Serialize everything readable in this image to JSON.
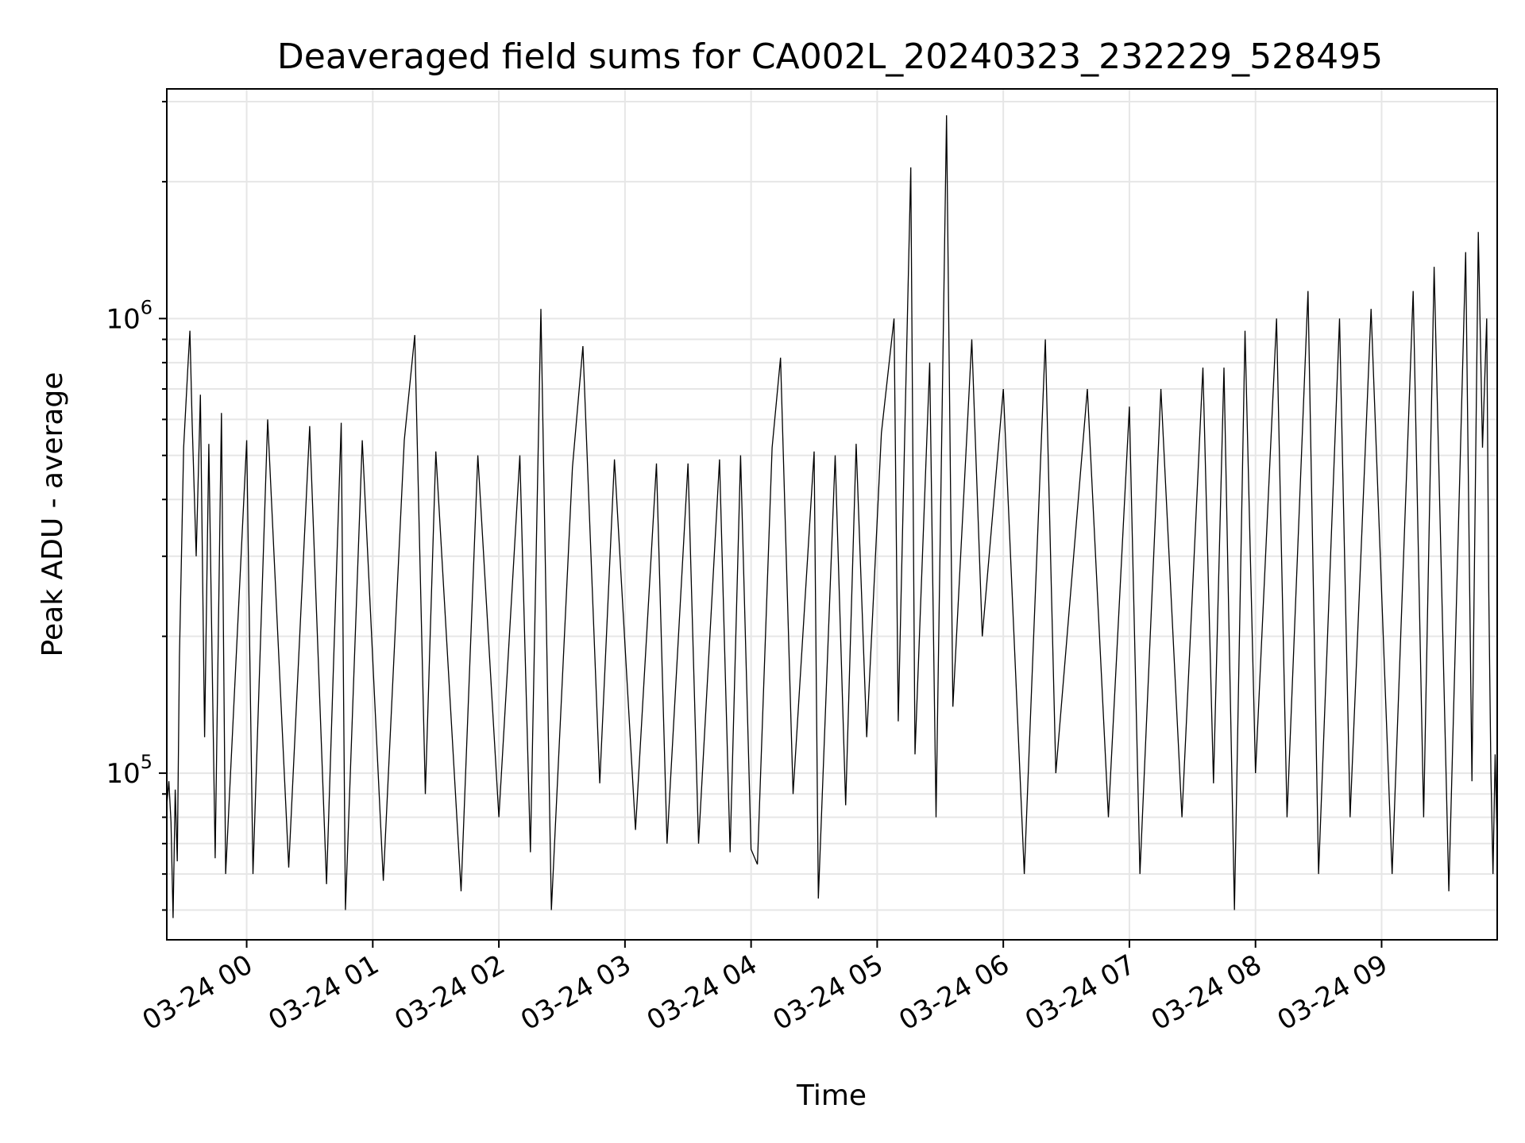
{
  "chart_data": {
    "type": "line",
    "title": "Deaveraged field sums for CA002L_20240323_232229_528495",
    "xlabel": "Time",
    "ylabel": "Peak ADU - average",
    "x_ticks": [
      "03-24 00",
      "03-24 01",
      "03-24 02",
      "03-24 03",
      "03-24 04",
      "03-24 05",
      "03-24 06",
      "03-24 07",
      "03-24 08",
      "03-24 09"
    ],
    "y_ticks": [
      {
        "base": "10",
        "exp": "5",
        "value": 100000
      },
      {
        "base": "10",
        "exp": "6",
        "value": 1000000
      }
    ],
    "xlim": [
      "03-23 23:22",
      "03-24 09:55"
    ],
    "ylim": [
      43000,
      3200000
    ],
    "yscale": "log",
    "grid": true,
    "line_color": "#000000",
    "grid_color": "#e6e6e6",
    "series": [
      {
        "points": [
          [
            "03-23 23:22",
            85000
          ],
          [
            "03-23 23:23",
            96000
          ],
          [
            "03-23 23:24",
            78000
          ],
          [
            "03-23 23:25",
            48000
          ],
          [
            "03-23 23:26",
            92000
          ],
          [
            "03-23 23:27",
            64000
          ],
          [
            "03-23 23:28",
            180000
          ],
          [
            "03-23 23:30",
            520000
          ],
          [
            "03-23 23:32",
            780000
          ],
          [
            "03-23 23:33",
            940000
          ],
          [
            "03-23 23:34",
            600000
          ],
          [
            "03-23 23:36",
            300000
          ],
          [
            "03-23 23:38",
            680000
          ],
          [
            "03-23 23:40",
            120000
          ],
          [
            "03-23 23:42",
            530000
          ],
          [
            "03-23 23:45",
            65000
          ],
          [
            "03-23 23:48",
            620000
          ],
          [
            "03-23 23:50",
            60000
          ],
          [
            "03-24 00:00",
            540000
          ],
          [
            "03-24 00:03",
            60000
          ],
          [
            "03-24 00:10",
            600000
          ],
          [
            "03-24 00:20",
            62000
          ],
          [
            "03-24 00:30",
            580000
          ],
          [
            "03-24 00:38",
            57000
          ],
          [
            "03-24 00:45",
            590000
          ],
          [
            "03-24 00:47",
            50000
          ],
          [
            "03-24 00:55",
            540000
          ],
          [
            "03-24 01:05",
            58000
          ],
          [
            "03-24 01:15",
            540000
          ],
          [
            "03-24 01:20",
            920000
          ],
          [
            "03-24 01:25",
            90000
          ],
          [
            "03-24 01:30",
            510000
          ],
          [
            "03-24 01:42",
            55000
          ],
          [
            "03-24 01:50",
            500000
          ],
          [
            "03-24 02:00",
            80000
          ],
          [
            "03-24 02:10",
            500000
          ],
          [
            "03-24 02:15",
            67000
          ],
          [
            "03-24 02:20",
            1050000
          ],
          [
            "03-24 02:25",
            50000
          ],
          [
            "03-24 02:35",
            470000
          ],
          [
            "03-24 02:40",
            870000
          ],
          [
            "03-24 02:48",
            95000
          ],
          [
            "03-24 02:55",
            490000
          ],
          [
            "03-24 03:05",
            75000
          ],
          [
            "03-24 03:15",
            480000
          ],
          [
            "03-24 03:20",
            70000
          ],
          [
            "03-24 03:30",
            480000
          ],
          [
            "03-24 03:35",
            70000
          ],
          [
            "03-24 03:45",
            490000
          ],
          [
            "03-24 03:50",
            67000
          ],
          [
            "03-24 03:55",
            500000
          ],
          [
            "03-24 04:00",
            68000
          ],
          [
            "03-24 04:03",
            63000
          ],
          [
            "03-24 04:10",
            520000
          ],
          [
            "03-24 04:14",
            820000
          ],
          [
            "03-24 04:20",
            90000
          ],
          [
            "03-24 04:30",
            510000
          ],
          [
            "03-24 04:32",
            53000
          ],
          [
            "03-24 04:40",
            500000
          ],
          [
            "03-24 04:45",
            85000
          ],
          [
            "03-24 04:50",
            530000
          ],
          [
            "03-24 04:55",
            120000
          ],
          [
            "03-24 05:02",
            560000
          ],
          [
            "03-24 05:08",
            1000000
          ],
          [
            "03-24 05:10",
            130000
          ],
          [
            "03-24 05:16",
            2150000
          ],
          [
            "03-24 05:18",
            110000
          ],
          [
            "03-24 05:25",
            800000
          ],
          [
            "03-24 05:28",
            80000
          ],
          [
            "03-24 05:33",
            2800000
          ],
          [
            "03-24 05:36",
            140000
          ],
          [
            "03-24 05:45",
            900000
          ],
          [
            "03-24 05:50",
            200000
          ],
          [
            "03-24 06:00",
            700000
          ],
          [
            "03-24 06:10",
            60000
          ],
          [
            "03-24 06:20",
            900000
          ],
          [
            "03-24 06:25",
            100000
          ],
          [
            "03-24 06:40",
            700000
          ],
          [
            "03-24 06:50",
            80000
          ],
          [
            "03-24 07:00",
            640000
          ],
          [
            "03-24 07:05",
            60000
          ],
          [
            "03-24 07:15",
            700000
          ],
          [
            "03-24 07:25",
            80000
          ],
          [
            "03-24 07:35",
            780000
          ],
          [
            "03-24 07:40",
            95000
          ],
          [
            "03-24 07:45",
            780000
          ],
          [
            "03-24 07:50",
            50000
          ],
          [
            "03-24 07:55",
            940000
          ],
          [
            "03-24 08:00",
            100000
          ],
          [
            "03-24 08:10",
            1000000
          ],
          [
            "03-24 08:15",
            80000
          ],
          [
            "03-24 08:25",
            1150000
          ],
          [
            "03-24 08:30",
            60000
          ],
          [
            "03-24 08:40",
            1000000
          ],
          [
            "03-24 08:45",
            80000
          ],
          [
            "03-24 08:55",
            1050000
          ],
          [
            "03-24 09:05",
            60000
          ],
          [
            "03-24 09:15",
            1150000
          ],
          [
            "03-24 09:20",
            80000
          ],
          [
            "03-24 09:25",
            1300000
          ],
          [
            "03-24 09:32",
            55000
          ],
          [
            "03-24 09:40",
            1400000
          ],
          [
            "03-24 09:43",
            96000
          ],
          [
            "03-24 09:46",
            1550000
          ],
          [
            "03-24 09:48",
            520000
          ],
          [
            "03-24 09:50",
            1000000
          ],
          [
            "03-24 09:51",
            250000
          ],
          [
            "03-24 09:52",
            100000
          ],
          [
            "03-24 09:53",
            60000
          ],
          [
            "03-24 09:54",
            110000
          ],
          [
            "03-24 09:55",
            70000
          ]
        ]
      }
    ]
  }
}
